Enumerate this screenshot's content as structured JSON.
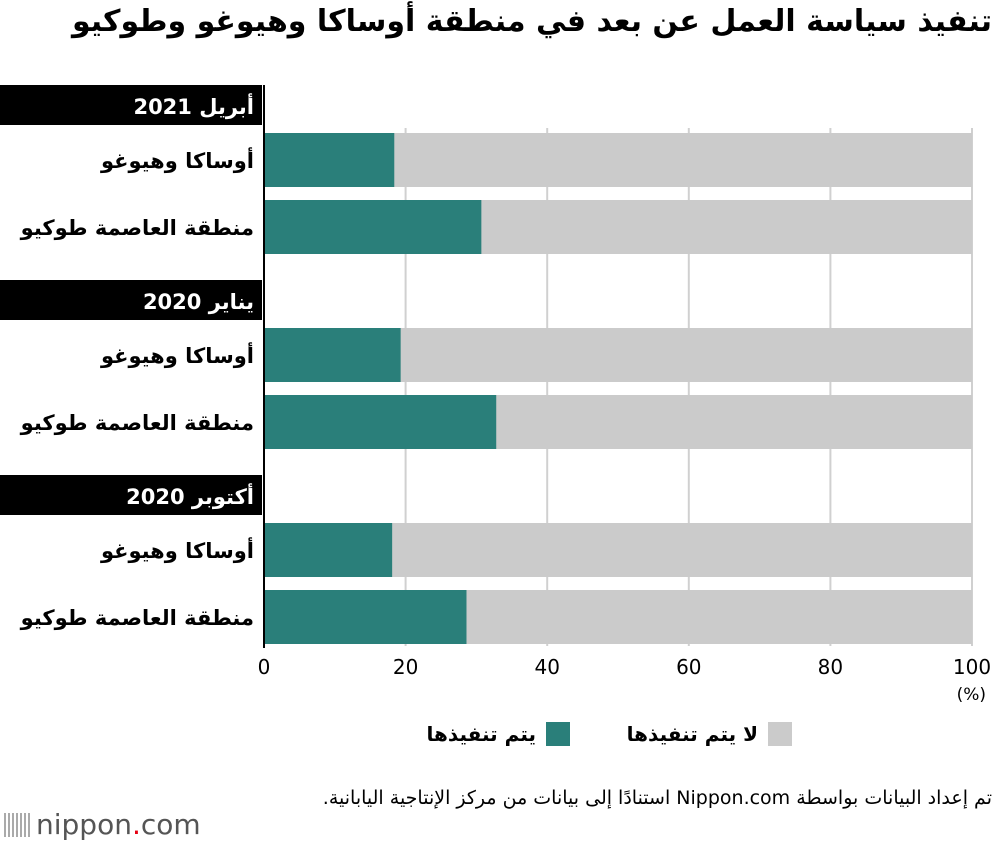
{
  "title": "تنفيذ سياسة العمل عن بعد في منطقة أوساكا وهيوغو وطوكيو",
  "colors": {
    "implemented": "#2a7f7a",
    "not_implemented": "#cbcbcb",
    "header_bg": "#000000",
    "grid": "#d0d0d0"
  },
  "chart_data": {
    "type": "bar",
    "orientation": "horizontal",
    "stacked": true,
    "title": "تنفيذ سياسة العمل عن بعد في منطقة أوساكا وهيوغو وطوكيو",
    "xlabel": "(%)",
    "xlim": [
      0,
      100
    ],
    "xticks": [
      "0",
      "20",
      "40",
      "60",
      "80",
      "100"
    ],
    "grid": true,
    "legend_position": "bottom",
    "series_names": [
      "يتم تنفيذها",
      "لا يتم تنفيذها"
    ],
    "groups": [
      {
        "label": "أبريل 2021",
        "items": [
          {
            "label": "أوساكا وهيوغو",
            "implemented": 18.4
          },
          {
            "label": "منطقة العاصمة طوكيو",
            "implemented": 30.7
          }
        ]
      },
      {
        "label": "يناير 2020",
        "items": [
          {
            "label": "أوساكا وهيوغو",
            "implemented": 19.3
          },
          {
            "label": "منطقة العاصمة طوكيو",
            "implemented": 32.8
          }
        ]
      },
      {
        "label": "أكتوبر 2020",
        "items": [
          {
            "label": "أوساكا وهيوغو",
            "implemented": 18.1
          },
          {
            "label": "منطقة العاصمة طوكيو",
            "implemented": 28.6
          }
        ]
      }
    ]
  },
  "legend": {
    "implemented": "يتم تنفيذها",
    "not_implemented": "لا يتم تنفيذها"
  },
  "source": "تم إعداد البيانات بواسطة Nippon.com استنادًا إلى بيانات من مركز الإنتاجية اليابانية.",
  "logo": {
    "name": "nippon",
    "dot": ".",
    "suffix": "com"
  }
}
